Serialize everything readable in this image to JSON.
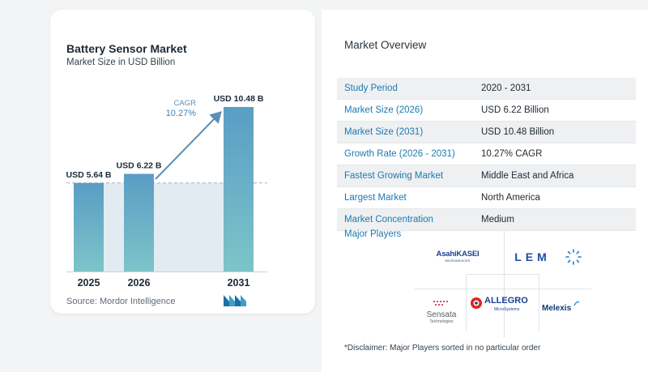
{
  "chart_data": {
    "type": "bar",
    "title": "Battery Sensor Market",
    "subtitle": "Market Size in USD Billion",
    "categories": [
      "2025",
      "2026",
      "2031"
    ],
    "values": [
      5.64,
      6.22,
      10.48
    ],
    "value_labels": [
      "USD 5.64 B",
      "USD 6.22 B",
      "USD 10.48 B"
    ],
    "ylim": [
      0,
      10.48
    ],
    "cagr_label": "CAGR",
    "cagr_value": "10.27%",
    "source": "Source: Mordor Intelligence",
    "colors": {
      "bar_top": "#5a9dc6",
      "bar_bottom": "#7dc4c8",
      "band": "#e2ebf2",
      "arrow": "#5b8fb5"
    }
  },
  "overview": {
    "title": "Market Overview",
    "rows": [
      {
        "label": "Study Period",
        "value": "2020 - 2031"
      },
      {
        "label": "Market Size (2026)",
        "value": "USD 6.22 Billion"
      },
      {
        "label": "Market Size (2031)",
        "value": "USD 10.48 Billion"
      },
      {
        "label": "Growth Rate (2026 - 2031)",
        "value": "10.27% CAGR"
      },
      {
        "label": "Fastest Growing Market",
        "value": "Middle East and Africa"
      },
      {
        "label": "Largest Market",
        "value": "North America"
      },
      {
        "label": "Market Concentration",
        "value": "Medium"
      }
    ],
    "players_title": "Major Players",
    "players": {
      "asahi": "AsahiKASEI",
      "asahi_sub": "MICRODEVICES",
      "lem": "LEM",
      "sensata": "Sensata",
      "sensata_sub": "Technologies",
      "allegro": "ALLEGRO",
      "allegro_sub": "MicroSystems",
      "melexis": "Melexis"
    },
    "disclaimer": "*Disclaimer: Major Players sorted in no particular order"
  }
}
